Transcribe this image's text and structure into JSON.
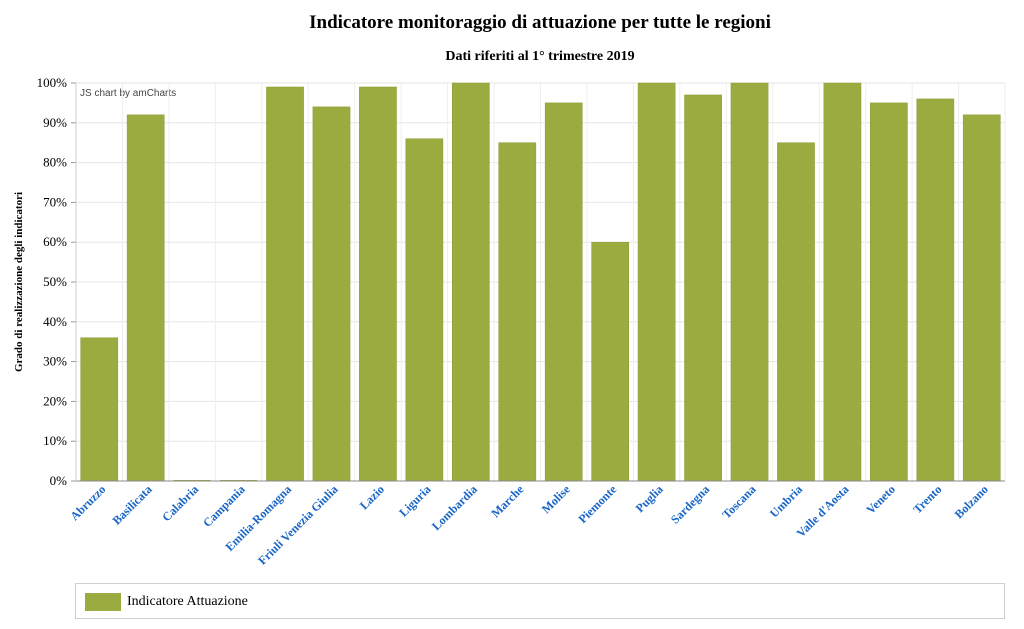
{
  "chart_data": {
    "type": "bar",
    "title": "Indicatore monitoraggio di attuazione per tutte le regioni",
    "subtitle": "Dati riferiti al 1° trimestre 2019",
    "xlabel": "",
    "ylabel": "Grado di realizzazione degli indicatori",
    "ylim": [
      0,
      100
    ],
    "y_ticks": [
      "0%",
      "10%",
      "20%",
      "30%",
      "40%",
      "50%",
      "60%",
      "70%",
      "80%",
      "90%",
      "100%"
    ],
    "categories": [
      "Abruzzo",
      "Basilicata",
      "Calabria",
      "Campania",
      "Emilia-Romagna",
      "Friuli Venezia Giulia",
      "Lazio",
      "Liguria",
      "Lombardia",
      "Marche",
      "Molise",
      "Piemonte",
      "Puglia",
      "Sardegna",
      "Toscana",
      "Umbria",
      "Valle d'Aosta",
      "Veneto",
      "Trento",
      "Bolzano"
    ],
    "series": [
      {
        "name": "Indicatore Attuazione",
        "color": "#9cab3f",
        "values": [
          36,
          92,
          0,
          0,
          99,
          94,
          99,
          86,
          100,
          85,
          95,
          60,
          100,
          97,
          100,
          85,
          100,
          95,
          96,
          92
        ]
      }
    ],
    "grid": true,
    "legend_position": "bottom",
    "credit": "JS chart by amCharts"
  }
}
